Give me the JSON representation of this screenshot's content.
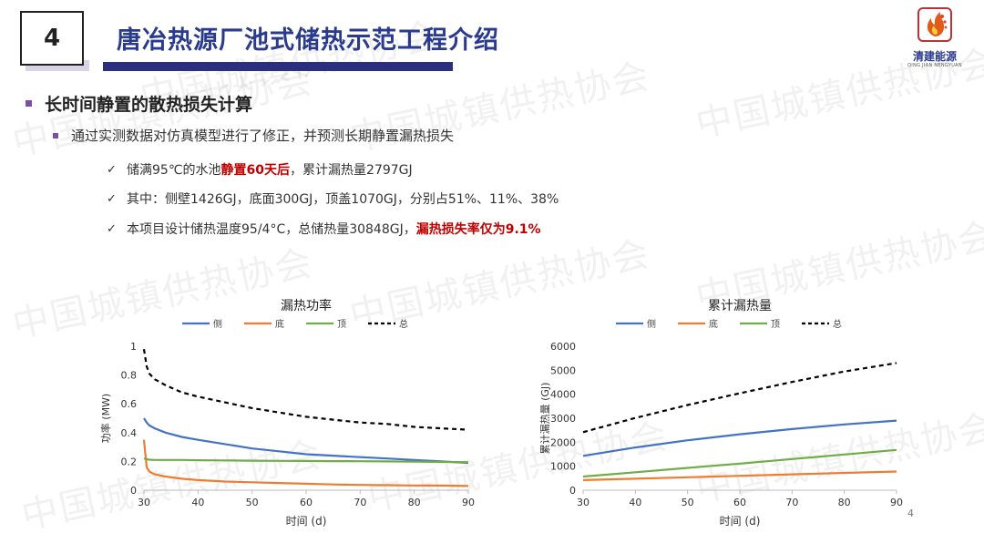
{
  "header": {
    "section_number": "4",
    "title": "唐冶热源厂池式储热示范工程介绍"
  },
  "logo": {
    "name": "清建能源",
    "subtitle": "QING JIAN NENGYUAN"
  },
  "watermark": "中国城镇供热协会",
  "heading": "长时间静置的散热损失计算",
  "subheading": "通过实测数据对仿真模型进行了修正，并预测长期静置漏热损失",
  "items": [
    {
      "pre": "储满95℃的水池",
      "highlight": "静置60天后",
      "post": "，累计漏热量2797GJ"
    },
    {
      "pre": "其中：侧壁1426GJ，底面300GJ，顶盖1070GJ，分别占51%、11%、38%",
      "highlight": "",
      "post": ""
    },
    {
      "pre": "本项目设计储热温度95/4°C，总储热量30848GJ，",
      "highlight": "漏热损失率仅为9.1%",
      "post": ""
    }
  ],
  "page_number": "4",
  "colors": {
    "title": "#2a3b8f",
    "accent": "#7b4fa5",
    "highlight": "#c00000",
    "side": "#4472c4",
    "bottom": "#ed7d31",
    "top": "#70ad47",
    "total": "#000000"
  },
  "chart_data": [
    {
      "type": "line",
      "title": "漏热功率",
      "xlabel": "时间 (d)",
      "ylabel": "功率 (MW)",
      "xlim": [
        30,
        90
      ],
      "ylim": [
        0,
        1
      ],
      "xticks": [
        "30",
        "40",
        "50",
        "60",
        "70",
        "80",
        "90"
      ],
      "yticks": [
        "0",
        "0.2",
        "0.4",
        "0.6",
        "0.8",
        "1"
      ],
      "legend_position": "top",
      "x": [
        30,
        30.5,
        31,
        32,
        34,
        37,
        40,
        45,
        50,
        55,
        60,
        65,
        70,
        75,
        80,
        85,
        90
      ],
      "series": [
        {
          "name": "侧",
          "values": [
            0.5,
            0.47,
            0.45,
            0.43,
            0.4,
            0.37,
            0.35,
            0.32,
            0.29,
            0.27,
            0.25,
            0.24,
            0.23,
            0.22,
            0.21,
            0.2,
            0.19
          ]
        },
        {
          "name": "底",
          "values": [
            0.35,
            0.16,
            0.13,
            0.11,
            0.095,
            0.08,
            0.07,
            0.06,
            0.055,
            0.05,
            0.045,
            0.04,
            0.037,
            0.035,
            0.033,
            0.032,
            0.03
          ]
        },
        {
          "name": "顶",
          "values": [
            0.22,
            0.215,
            0.212,
            0.21,
            0.21,
            0.21,
            0.208,
            0.207,
            0.205,
            0.204,
            0.203,
            0.202,
            0.201,
            0.2,
            0.198,
            0.196,
            0.195
          ]
        },
        {
          "name": "总",
          "values": [
            0.98,
            0.86,
            0.81,
            0.77,
            0.73,
            0.68,
            0.65,
            0.61,
            0.57,
            0.54,
            0.51,
            0.49,
            0.47,
            0.46,
            0.44,
            0.43,
            0.42
          ]
        }
      ]
    },
    {
      "type": "line",
      "title": "累计漏热量",
      "xlabel": "时间 (d)",
      "ylabel": "累计漏热量 (GJ)",
      "xlim": [
        30,
        90
      ],
      "ylim": [
        0,
        6000
      ],
      "xticks": [
        "30",
        "40",
        "50",
        "60",
        "70",
        "80",
        "90"
      ],
      "yticks": [
        "0",
        "1000",
        "2000",
        "3000",
        "4000",
        "5000",
        "6000"
      ],
      "legend_position": "top",
      "x": [
        30,
        40,
        50,
        60,
        70,
        80,
        90
      ],
      "series": [
        {
          "name": "侧",
          "values": [
            1430,
            1780,
            2080,
            2330,
            2550,
            2740,
            2900
          ]
        },
        {
          "name": "底",
          "values": [
            420,
            480,
            540,
            600,
            660,
            720,
            780
          ]
        },
        {
          "name": "顶",
          "values": [
            570,
            750,
            930,
            1110,
            1300,
            1490,
            1680
          ]
        },
        {
          "name": "总",
          "values": [
            2420,
            3010,
            3550,
            4040,
            4510,
            4950,
            5300
          ]
        }
      ]
    }
  ]
}
